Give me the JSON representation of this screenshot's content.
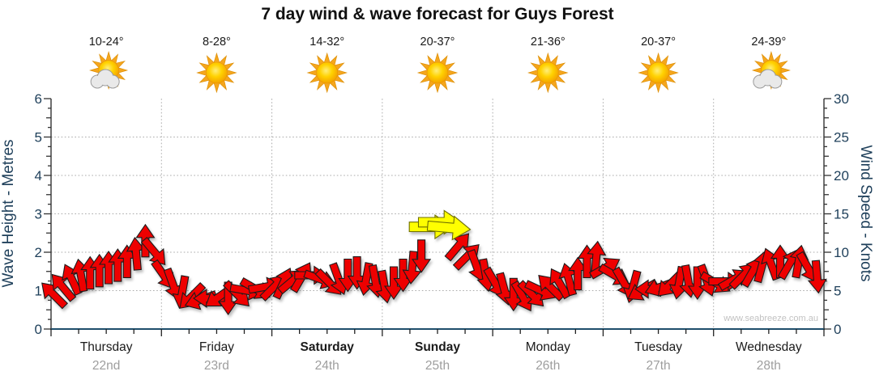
{
  "title": "7 day wind & wave forecast for Guys Forest",
  "watermark": "www.seabreeze.com.au",
  "days": [
    {
      "name": "Thursday",
      "date": "22nd",
      "temp": "10-24°",
      "icon": "sun-cloud-icon",
      "bold": false
    },
    {
      "name": "Friday",
      "date": "23rd",
      "temp": "8-28°",
      "icon": "sun-icon",
      "bold": false
    },
    {
      "name": "Saturday",
      "date": "24th",
      "temp": "14-32°",
      "icon": "sun-icon",
      "bold": true
    },
    {
      "name": "Sunday",
      "date": "25th",
      "temp": "20-37°",
      "icon": "sun-icon",
      "bold": true
    },
    {
      "name": "Monday",
      "date": "26th",
      "temp": "21-36°",
      "icon": "sun-icon",
      "bold": false
    },
    {
      "name": "Tuesday",
      "date": "27th",
      "temp": "20-37°",
      "icon": "sun-icon",
      "bold": false
    },
    {
      "name": "Wednesday",
      "date": "28th",
      "temp": "24-39°",
      "icon": "sun-cloud-icon",
      "bold": false
    }
  ],
  "colors": {
    "arrow_red": "#ee0000",
    "arrow_yellow": "#ffff00",
    "axis_text": "#1e3f5a",
    "bottom_axis_line": "#1f4e6b",
    "tick_line": "#333333",
    "grid_dotted": "#ababab",
    "date_text": "#9e9e9e",
    "sun_ray": "#f5a61d",
    "cloud_fill": "#e9e9e9"
  },
  "chart_data": {
    "type": "scatter",
    "subtype": "wind-arrow-timeseries",
    "title": "7 day wind & wave forecast for Guys Forest",
    "grid": true,
    "x_axis": {
      "range_days": [
        0,
        7
      ],
      "day_labels": [
        "Thursday",
        "Friday",
        "Saturday",
        "Sunday",
        "Monday",
        "Tuesday",
        "Wednesday"
      ]
    },
    "y_left": {
      "label": "Wave Height - Metres",
      "range": [
        0,
        6
      ],
      "ticks": [
        0,
        1,
        2,
        3,
        4,
        5,
        6
      ]
    },
    "y_right": {
      "label": "Wind Speed - Knots",
      "range": [
        0,
        30
      ],
      "ticks": [
        0,
        5,
        10,
        15,
        20,
        25,
        30
      ]
    },
    "points_columns": [
      "day_offset",
      "wind_speed_knots",
      "arrow_direction_deg_cw_from_up",
      "color(r=red,y=yellow)"
    ],
    "points": [
      [
        0.021,
        4.5,
        -45,
        "r"
      ],
      [
        0.104,
        5.5,
        -40,
        "r"
      ],
      [
        0.188,
        6.5,
        -25,
        "r"
      ],
      [
        0.271,
        7.0,
        -10,
        "r"
      ],
      [
        0.354,
        7.3,
        0,
        "r"
      ],
      [
        0.438,
        7.6,
        0,
        "r"
      ],
      [
        0.521,
        8.0,
        0,
        "r"
      ],
      [
        0.604,
        8.3,
        0,
        "r"
      ],
      [
        0.688,
        8.8,
        0,
        "r"
      ],
      [
        0.771,
        9.8,
        -5,
        "r"
      ],
      [
        0.854,
        11.5,
        0,
        "r"
      ],
      [
        0.938,
        10.0,
        140,
        "r"
      ],
      [
        1.021,
        7.0,
        145,
        "r"
      ],
      [
        1.104,
        5.8,
        160,
        "r"
      ],
      [
        1.188,
        4.8,
        190,
        "r"
      ],
      [
        1.271,
        4.2,
        225,
        "r"
      ],
      [
        1.354,
        3.8,
        250,
        "r"
      ],
      [
        1.438,
        4.0,
        270,
        "r"
      ],
      [
        1.521,
        4.2,
        235,
        "r"
      ],
      [
        1.604,
        4.0,
        180,
        "r"
      ],
      [
        1.688,
        4.5,
        135,
        "r"
      ],
      [
        1.771,
        5.0,
        100,
        "r"
      ],
      [
        1.854,
        5.2,
        120,
        "r"
      ],
      [
        1.938,
        5.5,
        80,
        "r"
      ],
      [
        2.021,
        5.5,
        45,
        "r"
      ],
      [
        2.104,
        6.0,
        25,
        "r"
      ],
      [
        2.188,
        6.3,
        50,
        "r"
      ],
      [
        2.271,
        6.8,
        30,
        "r"
      ],
      [
        2.354,
        7.0,
        90,
        "r"
      ],
      [
        2.438,
        6.5,
        110,
        "r"
      ],
      [
        2.521,
        6.0,
        135,
        "r"
      ],
      [
        2.604,
        6.5,
        160,
        "r"
      ],
      [
        2.688,
        7.0,
        180,
        "r"
      ],
      [
        2.771,
        7.3,
        180,
        "r"
      ],
      [
        2.854,
        6.5,
        190,
        "r"
      ],
      [
        2.938,
        6.2,
        170,
        "r"
      ],
      [
        3.021,
        5.5,
        170,
        "r"
      ],
      [
        3.104,
        6.0,
        180,
        "r"
      ],
      [
        3.188,
        7.0,
        180,
        "r"
      ],
      [
        3.271,
        8.0,
        185,
        "r"
      ],
      [
        3.354,
        9.5,
        180,
        "r"
      ],
      [
        3.438,
        13.3,
        90,
        "y"
      ],
      [
        3.521,
        13.9,
        90,
        "y"
      ],
      [
        3.604,
        13.2,
        95,
        "y"
      ],
      [
        3.688,
        10.8,
        40,
        "r"
      ],
      [
        3.771,
        9.5,
        45,
        "r"
      ],
      [
        3.854,
        8.2,
        160,
        "r"
      ],
      [
        3.938,
        7.0,
        170,
        "r"
      ],
      [
        4.021,
        6.0,
        150,
        "r"
      ],
      [
        4.104,
        5.2,
        165,
        "r"
      ],
      [
        4.188,
        4.5,
        180,
        "r"
      ],
      [
        4.271,
        4.2,
        150,
        "r"
      ],
      [
        4.354,
        4.5,
        135,
        "r"
      ],
      [
        4.438,
        5.0,
        115,
        "r"
      ],
      [
        4.521,
        5.5,
        -45,
        "r"
      ],
      [
        4.604,
        6.0,
        -30,
        "r"
      ],
      [
        4.688,
        6.5,
        -15,
        "r"
      ],
      [
        4.771,
        7.2,
        0,
        "r"
      ],
      [
        4.854,
        8.8,
        0,
        "r"
      ],
      [
        4.938,
        9.3,
        5,
        "r"
      ],
      [
        5.021,
        8.0,
        60,
        "r"
      ],
      [
        5.104,
        7.0,
        120,
        "r"
      ],
      [
        5.188,
        6.0,
        150,
        "r"
      ],
      [
        5.271,
        5.5,
        195,
        "r"
      ],
      [
        5.354,
        5.0,
        240,
        "r"
      ],
      [
        5.438,
        5.2,
        270,
        "r"
      ],
      [
        5.521,
        5.5,
        250,
        "r"
      ],
      [
        5.604,
        5.8,
        225,
        "r"
      ],
      [
        5.688,
        6.0,
        190,
        "r"
      ],
      [
        5.771,
        6.2,
        170,
        "r"
      ],
      [
        5.854,
        6.0,
        180,
        "r"
      ],
      [
        5.938,
        6.3,
        160,
        "r"
      ],
      [
        6.021,
        6.0,
        120,
        "r"
      ],
      [
        6.104,
        6.2,
        90,
        "r"
      ],
      [
        6.188,
        6.5,
        60,
        "r"
      ],
      [
        6.271,
        7.0,
        45,
        "r"
      ],
      [
        6.354,
        7.5,
        30,
        "r"
      ],
      [
        6.438,
        8.2,
        15,
        "r"
      ],
      [
        6.521,
        8.5,
        -20,
        "r"
      ],
      [
        6.604,
        8.8,
        0,
        "r"
      ],
      [
        6.688,
        8.5,
        30,
        "r"
      ],
      [
        6.771,
        8.8,
        10,
        "r"
      ],
      [
        6.854,
        8.0,
        150,
        "r"
      ],
      [
        6.938,
        6.8,
        175,
        "r"
      ]
    ]
  }
}
